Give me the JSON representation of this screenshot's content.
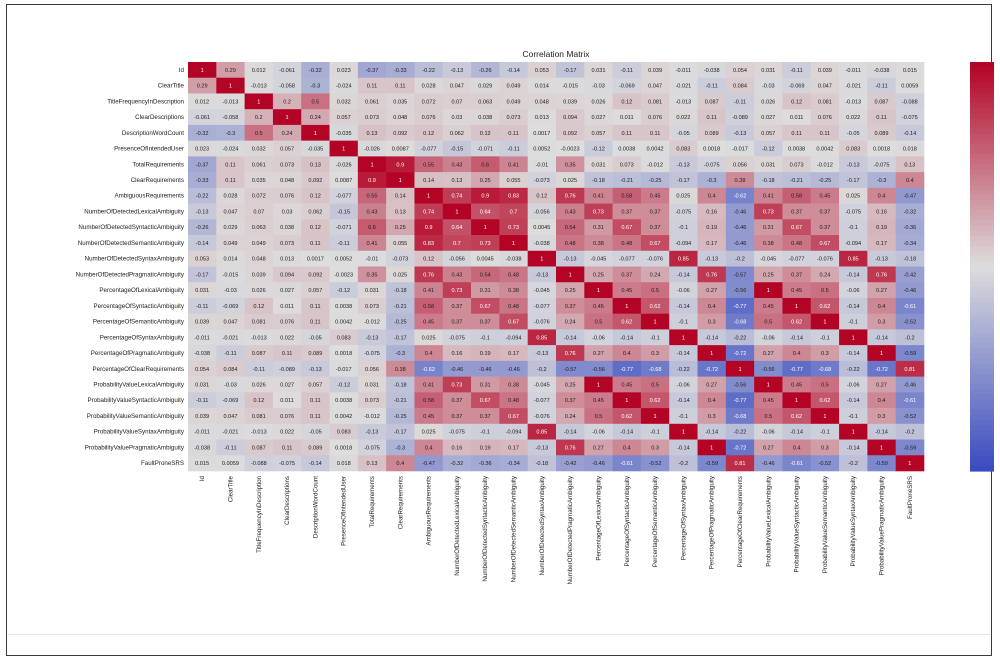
{
  "chart_data": {
    "type": "heatmap",
    "title": "Correlation Matrix",
    "labels": [
      "Id",
      "ClearTitle",
      "TitleFrequencyInDescription",
      "ClearDescriptions",
      "DescriptionWordCount",
      "PresenceOfIntendedUser",
      "TotalRequirements",
      "ClearRequirements",
      "AmbiguousRequirements",
      "NumberOfDetectedLexicalAmbiguity",
      "NumberOfDetectedSyntacticAmbiguity",
      "NumberOfDetectedSemanticAmbiguity",
      "NumberOfDetectedSyntaxAmbiguity",
      "NumberOfDetectedPragmaticAmbiguity",
      "PercentageOfLexicalAmbiguity",
      "PercentageOfSyntacticAmbiguity",
      "PercentageOfSemanticAmbiguity",
      "PercentageOfSyntaxAmbiguity",
      "PercentageOfPragmaticAmbiguity",
      "PercentageOfClearRequirements",
      "ProbabilityValueLexicalAmbiguity",
      "ProbabilityValueSyntacticAmbiguity",
      "ProbabilityValueSemanticAmbiguity",
      "ProbabilityValueSyntaxAmbiguity",
      "ProbabilityValuePragmaticAmbiguity",
      "FaultProneSRS"
    ],
    "matrix": [
      [
        1,
        0.29,
        0.012,
        -0.061,
        -0.32,
        0.023,
        -0.37,
        -0.33,
        -0.22,
        -0.13,
        -0.26,
        -0.14,
        0.053,
        -0.17,
        0.031,
        -0.11,
        0.039,
        -0.011,
        -0.038,
        0.054,
        0.031,
        -0.11,
        0.039,
        -0.011,
        -0.038,
        0.015
      ],
      [
        0.29,
        1,
        -0.013,
        -0.058,
        -0.3,
        -0.024,
        0.11,
        0.11,
        0.028,
        0.047,
        0.029,
        0.049,
        0.014,
        -0.015,
        -0.03,
        -0.069,
        0.047,
        -0.021,
        -0.11,
        0.084,
        -0.03,
        -0.069,
        0.047,
        -0.021,
        -0.11,
        0.0059
      ],
      [
        0.012,
        -0.013,
        1,
        0.2,
        0.5,
        0.032,
        0.061,
        0.035,
        0.072,
        0.07,
        0.063,
        0.049,
        0.048,
        0.039,
        0.026,
        0.12,
        0.081,
        -0.013,
        0.087,
        -0.11,
        0.026,
        0.12,
        0.081,
        -0.013,
        0.087,
        -0.088
      ],
      [
        -0.061,
        -0.058,
        0.2,
        1,
        0.24,
        0.057,
        0.073,
        0.048,
        0.076,
        0.03,
        0.038,
        0.073,
        0.013,
        0.094,
        0.027,
        0.011,
        0.076,
        0.022,
        0.11,
        -0.089,
        0.027,
        0.011,
        0.076,
        0.022,
        0.11,
        -0.075
      ],
      [
        -0.32,
        -0.3,
        0.5,
        0.24,
        1,
        -0.035,
        0.13,
        0.092,
        0.12,
        0.062,
        0.12,
        0.11,
        0.0017,
        0.092,
        0.057,
        0.11,
        0.11,
        -0.05,
        0.089,
        -0.13,
        0.057,
        0.11,
        0.11,
        -0.05,
        0.089,
        -0.14
      ],
      [
        0.023,
        -0.024,
        0.032,
        0.057,
        -0.035,
        1,
        -0.026,
        0.0087,
        -0.077,
        -0.15,
        -0.071,
        -0.11,
        0.0052,
        -0.0023,
        -0.12,
        0.0038,
        0.0042,
        0.083,
        0.0018,
        -0.017,
        -0.12,
        0.0038,
        0.0042,
        0.083,
        0.0018,
        0.018
      ],
      [
        -0.37,
        0.11,
        0.061,
        0.073,
        0.13,
        -0.026,
        1,
        0.9,
        0.55,
        0.43,
        0.6,
        0.41,
        -0.01,
        0.35,
        0.031,
        0.073,
        -0.012,
        -0.13,
        -0.075,
        0.056,
        0.031,
        0.073,
        -0.012,
        -0.13,
        -0.075,
        0.13
      ],
      [
        -0.33,
        0.11,
        0.035,
        0.048,
        0.092,
        0.0087,
        0.9,
        1,
        0.14,
        0.13,
        0.25,
        0.055,
        -0.073,
        0.025,
        -0.18,
        -0.21,
        -0.25,
        -0.17,
        -0.3,
        0.38,
        -0.18,
        -0.21,
        -0.25,
        -0.17,
        -0.3,
        0.4
      ],
      [
        -0.22,
        0.028,
        0.072,
        0.076,
        0.12,
        -0.077,
        0.55,
        0.14,
        1,
        0.74,
        0.9,
        0.83,
        0.12,
        0.76,
        0.41,
        0.58,
        0.45,
        0.025,
        0.4,
        -0.62,
        0.41,
        0.58,
        0.45,
        0.025,
        0.4,
        -0.47
      ],
      [
        -0.13,
        0.047,
        0.07,
        0.03,
        0.062,
        -0.15,
        0.43,
        0.13,
        0.74,
        1,
        0.64,
        0.7,
        -0.056,
        0.43,
        0.73,
        0.37,
        0.37,
        -0.075,
        0.16,
        -0.46,
        0.73,
        0.37,
        0.37,
        -0.075,
        0.16,
        -0.32
      ],
      [
        -0.26,
        0.029,
        0.063,
        0.038,
        0.12,
        -0.071,
        0.6,
        0.25,
        0.9,
        0.64,
        1,
        0.73,
        0.0045,
        0.54,
        0.31,
        0.67,
        0.37,
        -0.1,
        0.19,
        -0.46,
        0.31,
        0.67,
        0.37,
        -0.1,
        0.19,
        -0.36
      ],
      [
        -0.14,
        0.049,
        0.049,
        0.073,
        0.11,
        -0.11,
        0.41,
        0.055,
        0.83,
        0.7,
        0.73,
        1,
        -0.038,
        0.48,
        0.38,
        0.48,
        0.67,
        -0.094,
        0.17,
        -0.46,
        0.38,
        0.48,
        0.67,
        -0.094,
        0.17,
        -0.34
      ],
      [
        0.053,
        0.014,
        0.048,
        0.013,
        0.0017,
        0.0052,
        -0.01,
        -0.073,
        0.12,
        -0.056,
        0.0045,
        -0.038,
        1,
        -0.13,
        -0.045,
        -0.077,
        -0.076,
        0.85,
        -0.13,
        -0.2,
        -0.045,
        -0.077,
        -0.076,
        0.85,
        -0.13,
        -0.18
      ],
      [
        -0.17,
        -0.015,
        0.039,
        0.094,
        0.092,
        -0.0023,
        0.35,
        0.025,
        0.76,
        0.43,
        0.54,
        0.48,
        -0.13,
        1,
        0.25,
        0.37,
        0.24,
        -0.14,
        0.76,
        -0.57,
        0.25,
        0.37,
        0.24,
        -0.14,
        0.76,
        -0.42
      ],
      [
        0.031,
        -0.03,
        0.026,
        0.027,
        0.057,
        -0.12,
        0.031,
        -0.18,
        0.41,
        0.73,
        0.31,
        0.38,
        -0.045,
        0.25,
        1,
        0.45,
        0.5,
        -0.06,
        0.27,
        -0.56,
        1,
        0.45,
        0.5,
        -0.06,
        0.27,
        -0.46
      ],
      [
        -0.11,
        -0.069,
        0.12,
        0.011,
        0.11,
        0.0038,
        0.073,
        -0.21,
        0.58,
        0.37,
        0.67,
        0.48,
        -0.077,
        0.37,
        0.45,
        1,
        0.62,
        -0.14,
        0.4,
        -0.77,
        0.45,
        1,
        0.62,
        -0.14,
        0.4,
        -0.61
      ],
      [
        0.039,
        0.047,
        0.081,
        0.076,
        0.11,
        0.0042,
        -0.012,
        -0.25,
        0.45,
        0.37,
        0.37,
        0.67,
        -0.076,
        0.24,
        0.5,
        0.62,
        1,
        -0.1,
        0.3,
        -0.68,
        0.5,
        0.62,
        1,
        -0.1,
        0.3,
        -0.52
      ],
      [
        -0.011,
        -0.021,
        -0.013,
        0.022,
        -0.05,
        0.083,
        -0.13,
        -0.17,
        0.025,
        -0.075,
        -0.1,
        -0.094,
        0.85,
        -0.14,
        -0.06,
        -0.14,
        -0.1,
        1,
        -0.14,
        -0.22,
        -0.06,
        -0.14,
        -0.1,
        1,
        -0.14,
        -0.2
      ],
      [
        -0.038,
        -0.11,
        0.087,
        0.11,
        0.089,
        0.0018,
        -0.075,
        -0.3,
        0.4,
        0.16,
        0.19,
        0.17,
        -0.13,
        0.76,
        0.27,
        0.4,
        0.3,
        -0.14,
        1,
        -0.72,
        0.27,
        0.4,
        0.3,
        -0.14,
        1,
        -0.59
      ],
      [
        0.054,
        0.084,
        -0.11,
        -0.089,
        -0.13,
        -0.017,
        0.056,
        0.38,
        -0.62,
        -0.46,
        -0.46,
        -0.46,
        -0.2,
        -0.57,
        -0.56,
        -0.77,
        -0.68,
        -0.22,
        -0.72,
        1,
        -0.56,
        -0.77,
        -0.68,
        -0.22,
        -0.72,
        0.81
      ],
      [
        0.031,
        -0.03,
        0.026,
        0.027,
        0.057,
        -0.12,
        0.031,
        -0.18,
        0.41,
        0.73,
        0.31,
        0.38,
        -0.045,
        0.25,
        1,
        0.45,
        0.5,
        -0.06,
        0.27,
        -0.56,
        1,
        0.45,
        0.5,
        -0.06,
        0.27,
        -0.46
      ],
      [
        -0.11,
        -0.069,
        0.12,
        0.011,
        0.11,
        0.0038,
        0.073,
        -0.21,
        0.58,
        0.37,
        0.67,
        0.48,
        -0.077,
        0.37,
        0.45,
        1,
        0.62,
        -0.14,
        0.4,
        -0.77,
        0.45,
        1,
        0.62,
        -0.14,
        0.4,
        -0.61
      ],
      [
        0.039,
        0.047,
        0.081,
        0.076,
        0.11,
        0.0042,
        -0.012,
        -0.25,
        0.45,
        0.37,
        0.37,
        0.67,
        -0.076,
        0.24,
        0.5,
        0.62,
        1,
        -0.1,
        0.3,
        -0.68,
        0.5,
        0.62,
        1,
        -0.1,
        0.3,
        -0.52
      ],
      [
        -0.011,
        -0.021,
        -0.013,
        0.022,
        -0.05,
        0.083,
        -0.13,
        -0.17,
        0.025,
        -0.075,
        -0.1,
        -0.094,
        0.85,
        -0.14,
        -0.06,
        -0.14,
        -0.1,
        1,
        -0.14,
        -0.22,
        -0.06,
        -0.14,
        -0.1,
        1,
        -0.14,
        -0.2
      ],
      [
        -0.038,
        -0.11,
        0.087,
        0.11,
        0.089,
        0.0018,
        -0.075,
        -0.3,
        0.4,
        0.16,
        0.19,
        0.17,
        -0.13,
        0.76,
        0.27,
        0.4,
        0.3,
        -0.14,
        1,
        -0.72,
        0.27,
        0.4,
        0.3,
        -0.14,
        1,
        -0.59
      ],
      [
        0.015,
        0.0059,
        -0.088,
        -0.075,
        -0.14,
        0.018,
        0.13,
        0.4,
        -0.47,
        -0.32,
        -0.36,
        -0.34,
        -0.18,
        -0.42,
        -0.46,
        -0.61,
        -0.52,
        -0.2,
        -0.59,
        0.81,
        -0.46,
        -0.61,
        -0.52,
        -0.2,
        -0.59,
        1
      ]
    ],
    "value_range": [
      -1,
      1
    ],
    "colormap": "coolwarm",
    "colors": {
      "low": "#3b4cc0",
      "mid": "#dddddd",
      "high": "#b40426"
    },
    "colorbar": "right"
  }
}
